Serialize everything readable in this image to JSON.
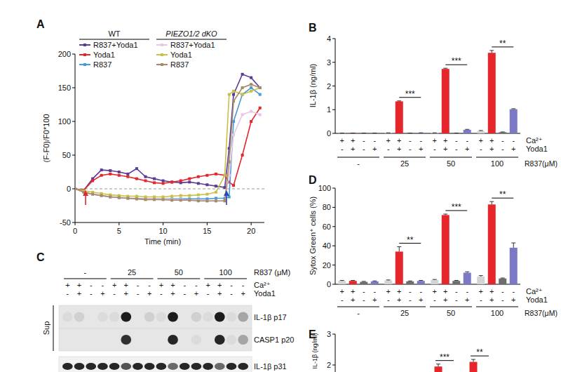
{
  "chart_data": [
    {
      "type": "line",
      "title": "A",
      "xlabel": "Time (min)",
      "ylabel": "(F-F0)/F0*100",
      "x": [
        0,
        1,
        2,
        3,
        4,
        5,
        6,
        7,
        8,
        9,
        10,
        11,
        12,
        13,
        14,
        15,
        16,
        17,
        17.5,
        18,
        19,
        20,
        21
      ],
      "xlim": [
        0,
        21.5
      ],
      "xticks": [
        0,
        5,
        10,
        15,
        20
      ],
      "ylim": [
        -50,
        200
      ],
      "yticks": [
        -50,
        0,
        50,
        100,
        150,
        200
      ],
      "hline": 0,
      "arrows": [
        {
          "x": 1.2,
          "color": "#e0282e"
        },
        {
          "x": 17.2,
          "color": "#2a4ab0"
        }
      ],
      "legend_groups": [
        {
          "label": "WT",
          "series": [
            0,
            1,
            2
          ]
        },
        {
          "label": "PIEZO1/2 dKO",
          "series": [
            3,
            4,
            5
          ]
        }
      ],
      "series": [
        {
          "name": "R837+Yoda1",
          "color": "#5a3c96",
          "marker": "square",
          "values": [
            0,
            -2,
            15,
            28,
            27,
            25,
            22,
            30,
            18,
            15,
            12,
            10,
            9,
            10,
            8,
            6,
            4,
            2,
            60,
            140,
            170,
            165,
            150
          ]
        },
        {
          "name": "Yoda1",
          "color": "#e0282e",
          "marker": "square",
          "values": [
            0,
            -2,
            12,
            20,
            22,
            20,
            18,
            15,
            12,
            9,
            8,
            10,
            12,
            15,
            18,
            20,
            22,
            20,
            10,
            5,
            50,
            100,
            120
          ]
        },
        {
          "name": "R837",
          "color": "#4a9ad6",
          "marker": "square",
          "values": [
            0,
            -5,
            -8,
            -10,
            -12,
            -13,
            -14,
            -14,
            -15,
            -15,
            -15,
            -15,
            -15,
            -15,
            -15,
            -15,
            -14,
            -14,
            -12,
            100,
            140,
            150,
            140
          ]
        },
        {
          "name": "R837+Yoda1",
          "color": "#e6c8e6",
          "marker": "square",
          "values": [
            0,
            -5,
            -8,
            -10,
            -12,
            -13,
            -14,
            -15,
            -15,
            -15,
            -15,
            -16,
            -16,
            -17,
            -17,
            -18,
            -18,
            -18,
            20,
            80,
            110,
            115,
            110
          ]
        },
        {
          "name": "Yoda1",
          "color": "#c9c04a",
          "marker": "square",
          "values": [
            0,
            -3,
            -5,
            -7,
            -9,
            -10,
            -11,
            -11,
            -12,
            -12,
            -12,
            -11,
            -10,
            -10,
            -9,
            -8,
            -5,
            20,
            140,
            145,
            140,
            145,
            150
          ]
        },
        {
          "name": "R837",
          "color": "#a88a68",
          "marker": "square",
          "values": [
            0,
            -5,
            -8,
            -10,
            -12,
            -13,
            -14,
            -15,
            -16,
            -16,
            -16,
            -17,
            -17,
            -17,
            -18,
            -18,
            -18,
            -18,
            40,
            130,
            150,
            155,
            150
          ]
        }
      ]
    },
    {
      "type": "bar",
      "title": "B",
      "ylabel": "IL-1β (ng/ml)",
      "xlabel": "R837(μM)",
      "categories": [
        "-",
        "25",
        "50",
        "100"
      ],
      "ylim": [
        0,
        4
      ],
      "yticks": [
        0,
        1,
        2,
        3,
        4
      ],
      "condition_labels": [
        "Ca²⁺",
        "Yoda1"
      ],
      "series": [
        {
          "color": "#d4d4d4",
          "conditions": [
            "+",
            "-"
          ],
          "values": [
            0.01,
            0.02,
            0.02,
            0.1
          ],
          "errors": [
            0.005,
            0.005,
            0.005,
            0.02
          ]
        },
        {
          "color": "#e5262b",
          "conditions": [
            "+",
            "+"
          ],
          "values": [
            0.01,
            1.35,
            2.72,
            3.4
          ],
          "errors": [
            0.005,
            0.02,
            0.03,
            0.1
          ]
        },
        {
          "color": "#6e6e6e",
          "conditions": [
            "-",
            "-"
          ],
          "values": [
            0.01,
            0.01,
            0.01,
            0.05
          ],
          "errors": [
            0.005,
            0.005,
            0.005,
            0.01
          ]
        },
        {
          "color": "#7b79c4",
          "conditions": [
            "-",
            "+"
          ],
          "values": [
            0.01,
            0.02,
            0.15,
            1.02
          ],
          "errors": [
            0.005,
            0.005,
            0.02,
            0.02
          ]
        }
      ],
      "annotations": [
        {
          "text": "***",
          "category": 1,
          "from": 1,
          "to": 3
        },
        {
          "text": "***",
          "category": 2,
          "from": 1,
          "to": 3
        },
        {
          "text": "**",
          "category": 3,
          "from": 1,
          "to": 3
        }
      ]
    },
    {
      "type": "bar",
      "title": "D",
      "ylabel": "Sytox Green⁺ cells (%)",
      "xlabel": "R837(μM)",
      "categories": [
        "-",
        "25",
        "50",
        "100"
      ],
      "ylim": [
        0,
        100
      ],
      "yticks": [
        0,
        20,
        40,
        60,
        80,
        100
      ],
      "condition_labels": [
        "Ca²⁺",
        "Yoda1"
      ],
      "series": [
        {
          "color": "#d4d4d4",
          "conditions": [
            "+",
            "-"
          ],
          "values": [
            3.5,
            4,
            4.5,
            8
          ],
          "errors": [
            0.5,
            0.5,
            0.5,
            1
          ]
        },
        {
          "color": "#e5262b",
          "conditions": [
            "+",
            "+"
          ],
          "values": [
            3.5,
            34,
            72,
            83
          ],
          "errors": [
            0.5,
            5,
            1,
            3
          ]
        },
        {
          "color": "#6e6e6e",
          "conditions": [
            "-",
            "-"
          ],
          "values": [
            2.5,
            3,
            3.5,
            6
          ],
          "errors": [
            0.5,
            0.5,
            0.5,
            0.5
          ]
        },
        {
          "color": "#7b79c4",
          "conditions": [
            "-",
            "+"
          ],
          "values": [
            3,
            3.5,
            12,
            38
          ],
          "errors": [
            0.5,
            0.5,
            1,
            5
          ]
        }
      ],
      "annotations": [
        {
          "text": "**",
          "category": 1,
          "from": 1,
          "to": 3
        },
        {
          "text": "***",
          "category": 2,
          "from": 1,
          "to": 3
        },
        {
          "text": "**",
          "category": 3,
          "from": 1,
          "to": 3
        }
      ]
    },
    {
      "type": "bar",
      "title": "E",
      "ylabel": "IL-1β (ng/ml)",
      "categories": [
        null,
        null
      ],
      "ylim": [
        0,
        3
      ],
      "yticks": [
        2,
        3
      ],
      "series": [
        {
          "color": "#e5262b",
          "values": [
            1.95,
            2.1
          ],
          "errors": [
            0.08,
            0.08
          ]
        }
      ],
      "annotations": [
        {
          "text": "***",
          "category": 0
        },
        {
          "text": "**",
          "category": 1
        }
      ]
    }
  ],
  "blot": {
    "title": "C",
    "header_label": "R837 (μM)",
    "groups": [
      "-",
      "25",
      "50",
      "100"
    ],
    "condition_labels": [
      "Ca²⁺",
      "Yoda1"
    ],
    "conditions": [
      [
        "+",
        "-"
      ],
      [
        "+",
        "+"
      ],
      [
        "-",
        "-"
      ],
      [
        "-",
        "+"
      ]
    ],
    "side_label": "Sup",
    "bands": [
      {
        "label": "IL-1β p17",
        "intensity": [
          0.05,
          0.1,
          0,
          0.05,
          0.05,
          0.95,
          0,
          0.1,
          0.05,
          0.95,
          0,
          0.1,
          0.05,
          0.95,
          0.05,
          0.3
        ]
      },
      {
        "label": "CASP1 p20",
        "intensity": [
          0,
          0,
          0,
          0,
          0,
          0.85,
          0,
          0,
          0,
          0.9,
          0,
          0.05,
          0,
          0.9,
          0.05,
          0.3
        ]
      },
      {
        "label": "IL-1β p31",
        "intensity": [
          0.9,
          0.9,
          0.9,
          0.9,
          0.9,
          0.7,
          0.9,
          0.9,
          0.9,
          0.6,
          0.9,
          0.9,
          0.9,
          0.6,
          0.9,
          0.9
        ]
      }
    ]
  }
}
